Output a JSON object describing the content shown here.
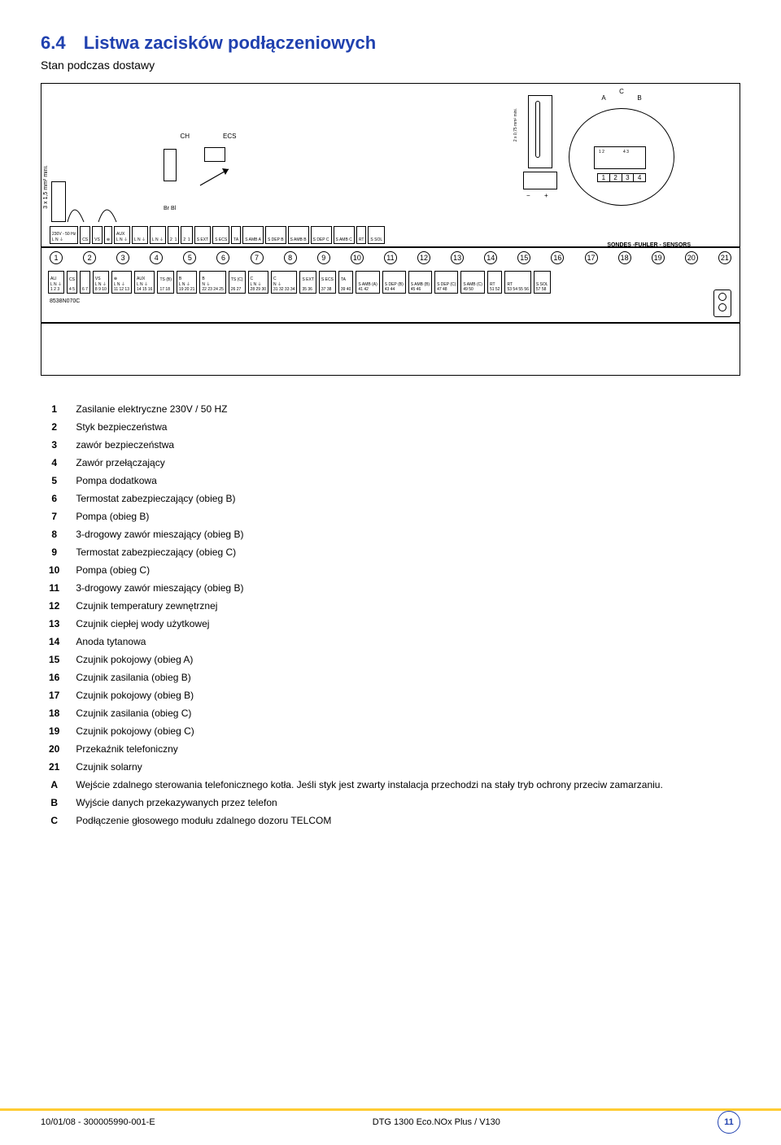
{
  "section": {
    "num": "6.4",
    "title": "Listwa zacisków podłączeniowych"
  },
  "subtitle": "Stan podczas dostawy",
  "diagram": {
    "ch_label": "CH",
    "ecs_label": "ECS",
    "cable1": "3 x 1,5 mm² mini.",
    "cable2": "2 x 0,75 mm² mini.",
    "sondes": "SONDES -FUHLER - SENSORS",
    "circ_c": "C",
    "circ_a": "A",
    "circ_b": "B",
    "nums_top": [
      "1",
      "2",
      "3",
      "4"
    ],
    "pm_minus": "−",
    "pm_plus": "+",
    "code": "8538N070C",
    "top_terms": [
      "230V - 50 Hz\nL N ⏚",
      "CS",
      "VS",
      "⊕",
      "AUX\nL N ⏚",
      "L N ⏚",
      "L N ⏚",
      "2  1",
      "2  1",
      "S EXT",
      "S ECS",
      "TA",
      "S AMB A",
      "S DEP B",
      "S AMB B",
      "S DEP C",
      "S AMB C",
      "RT",
      "S SOL"
    ],
    "circle_nums": [
      "1",
      "2",
      "3",
      "4",
      "5",
      "6",
      "7",
      "8",
      "9",
      "10",
      "11",
      "12",
      "13",
      "14",
      "15",
      "16",
      "17",
      "18",
      "19",
      "20",
      "21"
    ],
    "lower_terms": [
      "ALI\nL N ⏚\n1 2 3",
      "CS\n\n4 5",
      "6 7",
      "VS\nL N ⏚\n8 9 10",
      "⊕\nL N ⏚\n11 12 13",
      "AUX\nL N ⏚\n14 15 16",
      "TS (B)\n\n17 18",
      "B\nL N ⏚\n19 20 21",
      "B\nN ⏚\n22 23 24 25",
      "TS (C)\n\n26 27",
      "C\nL N ⏚\n28 29 30",
      "C\nN ⏚\n31 32 33 34",
      "S EXT\n\n35 36",
      "S ECS\n\n37 38",
      "TA\n\n39 40",
      "S AMB (A)\n41 42",
      "S DEP (B)\n43 44",
      "S AMB (B)\n45 46",
      "S DEP (C)\n47 48",
      "S AMB (C)\n49 50",
      "RT\n51 52",
      "RT\n53 54 55 56",
      "S SOL\n57 58"
    ]
  },
  "legend": [
    [
      "1",
      "Zasilanie elektryczne 230V / 50 HZ"
    ],
    [
      "2",
      "Styk bezpieczeństwa"
    ],
    [
      "3",
      "zawór bezpieczeństwa"
    ],
    [
      "4",
      "Zawór przełączający"
    ],
    [
      "5",
      "Pompa dodatkowa"
    ],
    [
      "6",
      "Termostat zabezpieczający (obieg B)"
    ],
    [
      "7",
      "Pompa (obieg B)"
    ],
    [
      "8",
      "3-drogowy zawór mieszający (obieg B)"
    ],
    [
      "9",
      "Termostat zabezpieczający (obieg C)"
    ],
    [
      "10",
      "Pompa (obieg C)"
    ],
    [
      "11",
      "3-drogowy zawór mieszający (obieg B)"
    ],
    [
      "12",
      "Czujnik temperatury zewnętrznej"
    ],
    [
      "13",
      "Czujnik ciepłej wody użytkowej"
    ],
    [
      "14",
      "Anoda tytanowa"
    ],
    [
      "15",
      "Czujnik pokojowy (obieg A)"
    ],
    [
      "16",
      "Czujnik zasilania (obieg B)"
    ],
    [
      "17",
      "Czujnik pokojowy (obieg B)"
    ],
    [
      "18",
      "Czujnik zasilania (obieg C)"
    ],
    [
      "19",
      "Czujnik pokojowy (obieg C)"
    ],
    [
      "20",
      "Przekaźnik telefoniczny"
    ],
    [
      "21",
      "Czujnik solarny"
    ],
    [
      "A",
      "Wejście zdalnego sterowania telefonicznego kotła. Jeśli styk jest zwarty instalacja przechodzi na stały tryb ochrony przeciw zamarzaniu."
    ],
    [
      "B",
      "Wyjście danych przekazywanych przez telefon"
    ],
    [
      "C",
      "Podłączenie głosowego modułu zdalnego dozoru TELCOM"
    ]
  ],
  "footer": {
    "left": "10/01/08 - 300005990-001-E",
    "center": "DTG 1300 Eco.NOx Plus / V130",
    "page": "11"
  },
  "colors": {
    "title": "#2041af",
    "bar": "#ffcc33"
  }
}
